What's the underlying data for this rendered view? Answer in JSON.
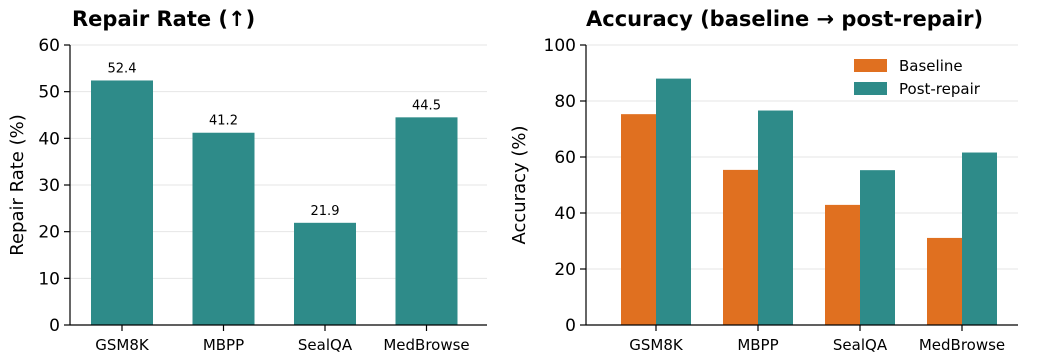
{
  "chart_data": [
    {
      "type": "bar",
      "title": "Repair Rate (↑)",
      "xlabel": "",
      "ylabel": "Repair Rate (%)",
      "categories": [
        "GSM8K",
        "MBPP",
        "SealQA",
        "MedBrowse"
      ],
      "values": [
        52.4,
        41.2,
        21.9,
        44.5
      ],
      "value_labels": [
        "52.4",
        "41.2",
        "21.9",
        "44.5"
      ],
      "ylim": [
        0,
        60
      ],
      "yticks": [
        0,
        10,
        20,
        30,
        40,
        50,
        60
      ],
      "grid": "horizontal",
      "color": "#2e8b89"
    },
    {
      "type": "bar",
      "title": "Accuracy (baseline → post-repair)",
      "xlabel": "",
      "ylabel": "Accuracy (%)",
      "categories": [
        "GSM8K",
        "MBPP",
        "SealQA",
        "MedBrowse"
      ],
      "series": [
        {
          "name": "Baseline",
          "values": [
            75.3,
            55.4,
            42.9,
            31.1
          ],
          "color": "#e07020"
        },
        {
          "name": "Post-repair",
          "values": [
            88.0,
            76.6,
            55.3,
            61.6
          ],
          "color": "#2e8b89"
        }
      ],
      "ylim": [
        0,
        100
      ],
      "yticks": [
        0,
        20,
        40,
        60,
        80,
        100
      ],
      "grid": "horizontal",
      "legend": "top-right"
    }
  ]
}
